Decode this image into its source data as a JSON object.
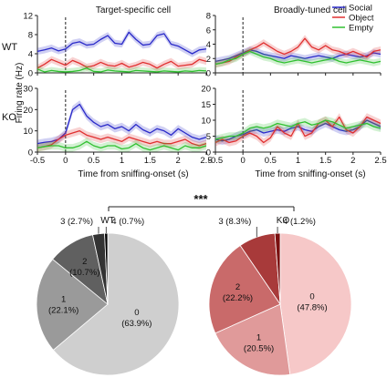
{
  "panel_titles": {
    "left": "Target-specific cell",
    "right": "Broadly-tuned cell"
  },
  "row_labels": {
    "top": "WT",
    "bottom": "KO"
  },
  "y_label": "Firing rate (Hz)",
  "x_label": "Time from sniffing-onset (s)",
  "legend": [
    {
      "label": "Social",
      "color": "#2a2ac9"
    },
    {
      "label": "Object",
      "color": "#e03030"
    },
    {
      "label": "Empty",
      "color": "#30c030"
    }
  ],
  "significance": "***",
  "pie_labels": {
    "wt": "WT",
    "ko": "KO"
  },
  "chart_data": [
    {
      "id": "wt-target",
      "type": "line",
      "x": [
        -0.5,
        -0.375,
        -0.25,
        -0.125,
        0,
        0.125,
        0.25,
        0.375,
        0.5,
        0.625,
        0.75,
        0.875,
        1,
        1.125,
        1.25,
        1.375,
        1.5,
        1.625,
        1.75,
        1.875,
        2,
        2.125,
        2.25,
        2.375,
        2.5
      ],
      "xlim": [
        -0.5,
        2.5
      ],
      "ylim": [
        0,
        12
      ],
      "xticks": [
        "-0.5",
        "0",
        "0.5",
        "1",
        "1.5",
        "2",
        "2.5"
      ],
      "yticks": [
        "0",
        "4",
        "8",
        "12"
      ],
      "series": [
        {
          "name": "Social",
          "color": "#2a2ac9",
          "values": [
            4.5,
            4.8,
            5.2,
            4.6,
            5.0,
            6.2,
            6.5,
            5.8,
            6.0,
            7.0,
            7.8,
            6.2,
            6.0,
            8.5,
            7.0,
            5.8,
            6.0,
            7.8,
            8.2,
            6.0,
            5.6,
            4.8,
            4.0,
            4.8,
            5.0
          ]
        },
        {
          "name": "Object",
          "color": "#e03030",
          "values": [
            1.0,
            1.8,
            2.8,
            2.2,
            1.6,
            2.6,
            2.0,
            1.2,
            1.5,
            2.2,
            1.6,
            1.4,
            2.0,
            1.2,
            1.6,
            2.2,
            1.8,
            1.0,
            1.8,
            2.4,
            1.4,
            1.6,
            1.8,
            2.8,
            2.4
          ]
        },
        {
          "name": "Empty",
          "color": "#30c030",
          "values": [
            0.8,
            0.2,
            0.5,
            0.3,
            0.2,
            0.3,
            0.5,
            1.0,
            0.3,
            0.2,
            0.6,
            0.4,
            0.3,
            0.2,
            0.5,
            0.4,
            0.3,
            0.2,
            0.4,
            0.3,
            0.2,
            0.4,
            0.3,
            0.5,
            0.4
          ]
        }
      ]
    },
    {
      "id": "wt-broad",
      "type": "line",
      "x": [
        -0.5,
        -0.375,
        -0.25,
        -0.125,
        0,
        0.125,
        0.25,
        0.375,
        0.5,
        0.625,
        0.75,
        0.875,
        1,
        1.125,
        1.25,
        1.375,
        1.5,
        1.625,
        1.75,
        1.875,
        2,
        2.125,
        2.25,
        2.375,
        2.5
      ],
      "xlim": [
        -0.5,
        2.5
      ],
      "ylim": [
        0,
        8
      ],
      "xticks": [
        "-0.5",
        "0",
        "0.5",
        "1",
        "1.5",
        "2",
        "2.5"
      ],
      "yticks": [
        "0",
        "2",
        "4",
        "6",
        "8"
      ],
      "series": [
        {
          "name": "Social",
          "color": "#2a2ac9",
          "values": [
            1.6,
            1.8,
            2.0,
            2.4,
            2.8,
            3.2,
            3.0,
            2.6,
            2.4,
            2.2,
            2.0,
            2.4,
            2.2,
            2.0,
            2.2,
            2.4,
            2.2,
            2.0,
            2.4,
            2.6,
            2.4,
            2.2,
            2.4,
            2.8,
            2.6
          ]
        },
        {
          "name": "Object",
          "color": "#e03030",
          "values": [
            1.2,
            1.4,
            1.6,
            2.2,
            2.6,
            3.2,
            3.6,
            4.2,
            3.6,
            3.0,
            2.6,
            3.0,
            3.6,
            4.8,
            3.6,
            3.2,
            3.8,
            3.2,
            3.0,
            2.6,
            3.0,
            2.6,
            2.2,
            3.0,
            3.2
          ]
        },
        {
          "name": "Empty",
          "color": "#30c030",
          "values": [
            1.2,
            1.4,
            1.8,
            2.0,
            2.6,
            3.0,
            2.6,
            2.2,
            2.0,
            1.6,
            1.4,
            1.6,
            1.8,
            1.6,
            1.4,
            1.6,
            1.8,
            2.0,
            1.6,
            1.4,
            1.6,
            1.8,
            1.6,
            1.4,
            1.6
          ]
        }
      ]
    },
    {
      "id": "ko-target",
      "type": "line",
      "x": [
        -0.5,
        -0.375,
        -0.25,
        -0.125,
        0,
        0.125,
        0.25,
        0.375,
        0.5,
        0.625,
        0.75,
        0.875,
        1,
        1.125,
        1.25,
        1.375,
        1.5,
        1.625,
        1.75,
        1.875,
        2,
        2.125,
        2.25,
        2.375,
        2.5
      ],
      "xlim": [
        -0.5,
        2.5
      ],
      "ylim": [
        0,
        30
      ],
      "xticks": [
        "-0.5",
        "0",
        "0.5",
        "1",
        "1.5",
        "2",
        "2.5"
      ],
      "yticks": [
        "0",
        "10",
        "20",
        "30"
      ],
      "series": [
        {
          "name": "Social",
          "color": "#2a2ac9",
          "values": [
            4.0,
            4.6,
            5.0,
            6.0,
            9.0,
            20.0,
            22.5,
            17.0,
            14.0,
            12.0,
            13.0,
            11.0,
            12.0,
            10.0,
            13.0,
            10.5,
            9.0,
            11.0,
            10.0,
            8.0,
            11.0,
            9.0,
            7.0,
            6.0,
            7.0
          ]
        },
        {
          "name": "Object",
          "color": "#e03030",
          "values": [
            2.0,
            2.6,
            3.5,
            6.0,
            8.0,
            9.0,
            10.0,
            8.0,
            7.0,
            6.0,
            7.0,
            6.0,
            5.0,
            7.0,
            6.0,
            5.0,
            4.0,
            5.0,
            4.0,
            4.0,
            5.0,
            6.0,
            4.0,
            3.0,
            4.0
          ]
        },
        {
          "name": "Empty",
          "color": "#30c030",
          "values": [
            2.0,
            2.6,
            3.0,
            3.0,
            2.0,
            2.0,
            3.0,
            5.0,
            3.0,
            2.0,
            3.0,
            3.0,
            1.5,
            2.0,
            4.0,
            2.0,
            1.0,
            2.0,
            3.0,
            2.0,
            1.0,
            3.0,
            2.0,
            2.0,
            3.0
          ]
        }
      ]
    },
    {
      "id": "ko-broad",
      "type": "line",
      "x": [
        -0.5,
        -0.375,
        -0.25,
        -0.125,
        0,
        0.125,
        0.25,
        0.375,
        0.5,
        0.625,
        0.75,
        0.875,
        1,
        1.125,
        1.25,
        1.375,
        1.5,
        1.625,
        1.75,
        1.875,
        2,
        2.125,
        2.25,
        2.375,
        2.5
      ],
      "xlim": [
        -0.5,
        2.5
      ],
      "ylim": [
        0,
        20
      ],
      "xticks": [
        "-0.5",
        "0",
        "0.5",
        "1",
        "1.5",
        "2",
        "2.5"
      ],
      "yticks": [
        "0",
        "5",
        "10",
        "15",
        "20"
      ],
      "series": [
        {
          "name": "Social",
          "color": "#2a2ac9",
          "values": [
            4.0,
            3.5,
            4.0,
            5.0,
            5.5,
            6.5,
            7.0,
            6.0,
            6.5,
            7.0,
            6.5,
            7.5,
            8.0,
            7.0,
            6.5,
            8.0,
            9.0,
            8.0,
            7.0,
            6.5,
            7.0,
            8.0,
            10.0,
            9.0,
            8.0
          ]
        },
        {
          "name": "Object",
          "color": "#e03030",
          "values": [
            3.0,
            4.0,
            3.0,
            3.5,
            5.0,
            6.0,
            5.0,
            3.0,
            4.5,
            8.0,
            6.0,
            5.0,
            9.0,
            5.0,
            6.0,
            9.0,
            10.0,
            8.0,
            11.0,
            7.0,
            6.0,
            8.0,
            11.0,
            10.0,
            9.0
          ]
        },
        {
          "name": "Empty",
          "color": "#30c030",
          "values": [
            4.0,
            4.5,
            5.0,
            5.0,
            6.0,
            7.5,
            8.0,
            7.5,
            8.0,
            9.0,
            8.5,
            8.0,
            9.0,
            9.5,
            8.5,
            9.0,
            10.0,
            9.5,
            8.5,
            7.5,
            8.0,
            8.5,
            9.0,
            8.0,
            7.5
          ]
        }
      ]
    },
    {
      "id": "pie-wt",
      "type": "pie",
      "slices": [
        {
          "label": "0",
          "percent": 63.9,
          "display": "(63.9%)",
          "color": "#cfcfcf"
        },
        {
          "label": "1",
          "percent": 22.1,
          "display": "(22.1%)",
          "color": "#9a9a9a"
        },
        {
          "label": "2",
          "percent": 10.7,
          "display": "(10.7%)",
          "color": "#606060"
        },
        {
          "label": "3",
          "percent": 2.7,
          "display": "3 (2.7%)",
          "color": "#333333"
        },
        {
          "label": "4",
          "percent": 0.7,
          "display": "4 (0.7%)",
          "color": "#000000"
        }
      ]
    },
    {
      "id": "pie-ko",
      "type": "pie",
      "slices": [
        {
          "label": "0",
          "percent": 47.8,
          "display": "(47.8%)",
          "color": "#f6c8c8"
        },
        {
          "label": "1",
          "percent": 20.5,
          "display": "(20.5%)",
          "color": "#e09a9a"
        },
        {
          "label": "2",
          "percent": 22.2,
          "display": "(22.2%)",
          "color": "#c96a6a"
        },
        {
          "label": "3",
          "percent": 8.3,
          "display": "3 (8.3%)",
          "color": "#a83a3a"
        },
        {
          "label": "4",
          "percent": 1.2,
          "display": "4 (1.2%)",
          "color": "#7a1010"
        }
      ]
    }
  ]
}
